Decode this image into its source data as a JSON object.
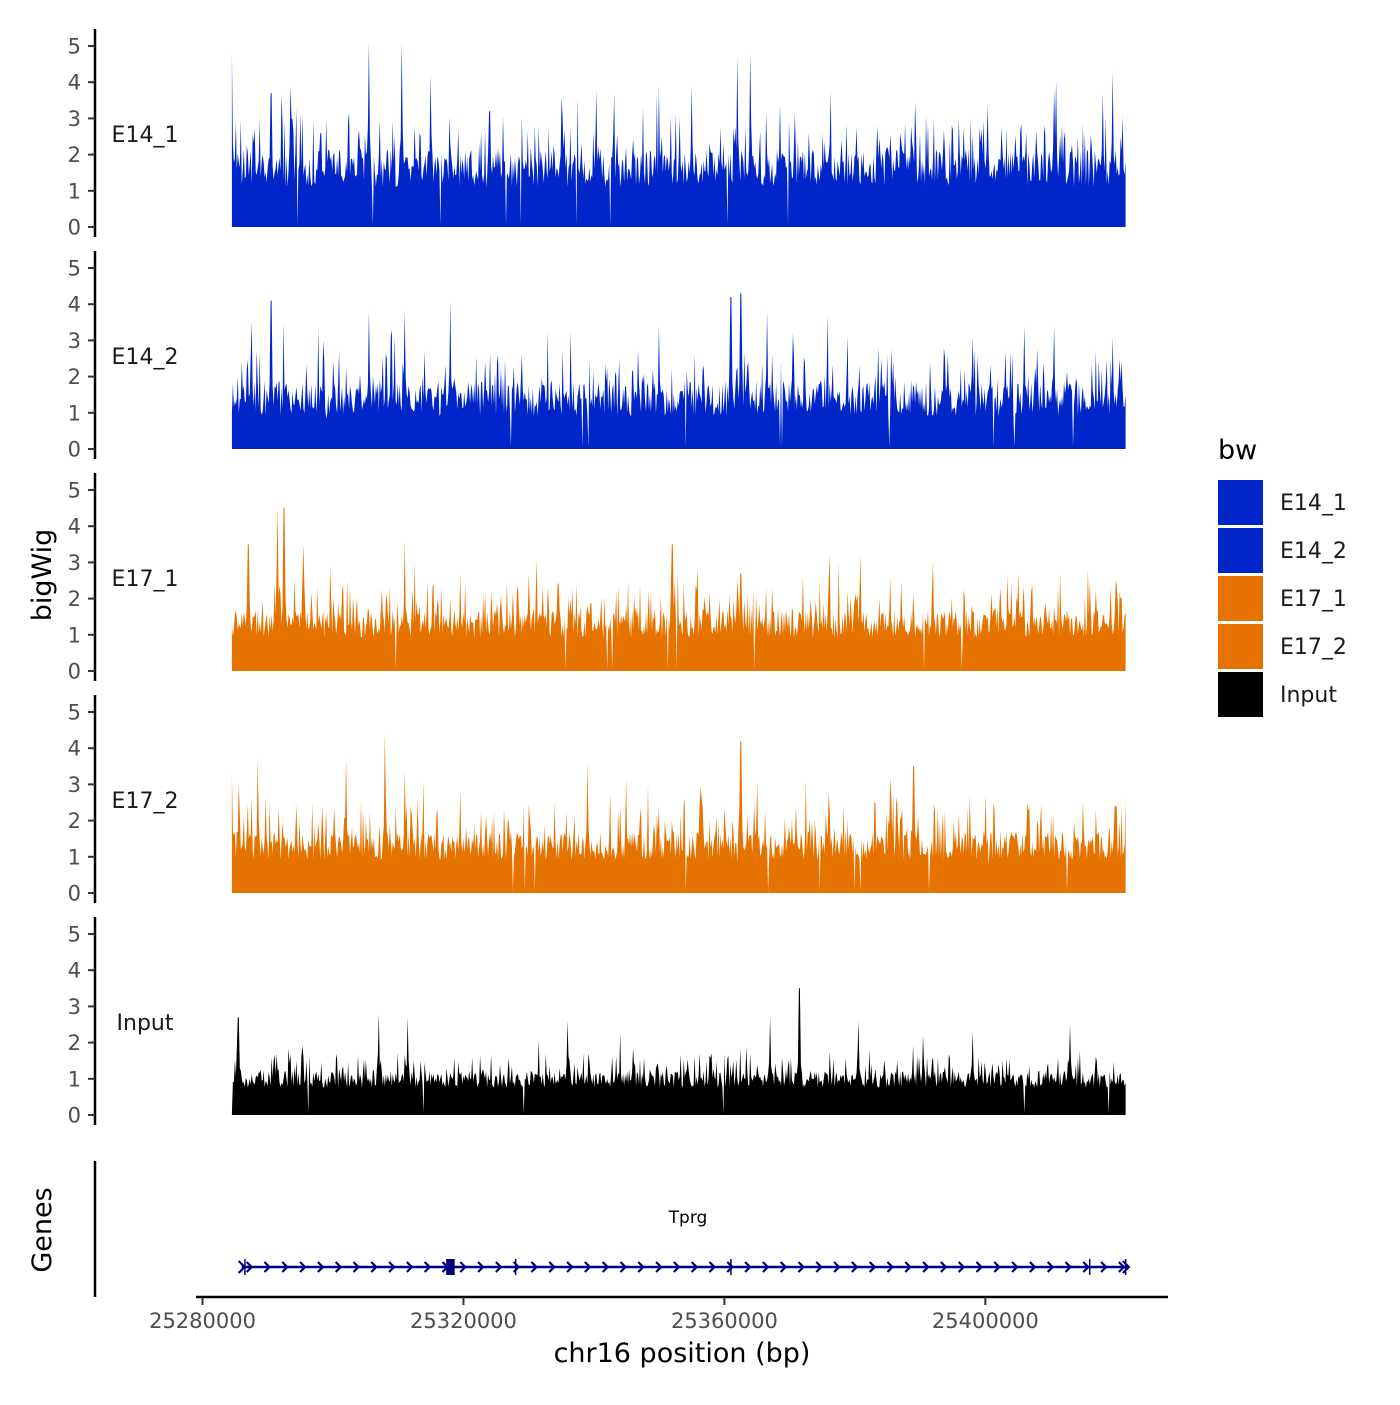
{
  "chart_data": {
    "type": "area",
    "title": "",
    "ylabel": "bigWig",
    "xlabel": "chr16 position (bp)",
    "ylim": [
      0,
      5.3
    ],
    "yticks": [
      0,
      1,
      2,
      3,
      4,
      5
    ],
    "xlim": [
      25279000,
      25428000
    ],
    "xticks": [
      25280000,
      25320000,
      25360000,
      25400000
    ],
    "xtick_labels": [
      "25280000",
      "25320000",
      "25360000",
      "25400000"
    ],
    "data_range": [
      25284500,
      25421500
    ],
    "tracks": [
      {
        "name": "E14_1",
        "color": "#0025C8",
        "peaks": [
          [
            25284500,
            4.8
          ],
          [
            25290500,
            3.7
          ],
          [
            25293500,
            3.9
          ],
          [
            25305500,
            5.1
          ],
          [
            25310500,
            5.1
          ],
          [
            25315000,
            4.2
          ],
          [
            25324000,
            3.2
          ],
          [
            25335000,
            3.6
          ],
          [
            25355000,
            3.9
          ],
          [
            25362000,
            4.7
          ],
          [
            25364000,
            4.8
          ],
          [
            25368500,
            3.4
          ],
          [
            25383500,
            2.8
          ],
          [
            25395000,
            2.7
          ],
          [
            25410500,
            3.8
          ],
          [
            25418000,
            3.7
          ],
          [
            25419500,
            4.3
          ]
        ],
        "base": 1.1,
        "spread": 1.3
      },
      {
        "name": "E14_2",
        "color": "#0025C8",
        "peaks": [
          [
            25287500,
            3.5
          ],
          [
            25290500,
            4.1
          ],
          [
            25298500,
            3.0
          ],
          [
            25305500,
            3.8
          ],
          [
            25311000,
            3.8
          ],
          [
            25318000,
            4.1
          ],
          [
            25329000,
            2.6
          ],
          [
            25350000,
            3.4
          ],
          [
            25361000,
            4.2
          ],
          [
            25362500,
            4.3
          ],
          [
            25366500,
            3.8
          ],
          [
            25370500,
            3.2
          ],
          [
            25384000,
            2.5
          ],
          [
            25398000,
            3.1
          ],
          [
            25406000,
            3.4
          ],
          [
            25410500,
            3.4
          ],
          [
            25419500,
            3.1
          ]
        ],
        "base": 0.9,
        "spread": 1.2
      },
      {
        "name": "E17_1",
        "color": "#E67300",
        "peaks": [
          [
            25287000,
            3.5
          ],
          [
            25291500,
            4.5
          ],
          [
            25292500,
            4.5
          ],
          [
            25295500,
            3.5
          ],
          [
            25311000,
            3.6
          ],
          [
            25319500,
            2.7
          ],
          [
            25330000,
            2.7
          ],
          [
            25352000,
            3.5
          ],
          [
            25362500,
            2.7
          ],
          [
            25376000,
            2.5
          ],
          [
            25392000,
            3.0
          ],
          [
            25405000,
            2.7
          ],
          [
            25420000,
            2.5
          ]
        ],
        "base": 0.9,
        "spread": 1.0
      },
      {
        "name": "E17_2",
        "color": "#E67300",
        "peaks": [
          [
            25284500,
            3.3
          ],
          [
            25288500,
            3.7
          ],
          [
            25302000,
            3.7
          ],
          [
            25308000,
            4.4
          ],
          [
            25311000,
            3.4
          ],
          [
            25319500,
            2.8
          ],
          [
            25339000,
            3.6
          ],
          [
            25362500,
            4.2
          ],
          [
            25365000,
            3.1
          ],
          [
            25376000,
            2.8
          ],
          [
            25389000,
            3.5
          ],
          [
            25400000,
            2.7
          ],
          [
            25415000,
            2.5
          ],
          [
            25420000,
            2.4
          ]
        ],
        "base": 0.9,
        "spread": 1.0
      },
      {
        "name": "Input",
        "color": "#000000",
        "peaks": [
          [
            25285500,
            2.7
          ],
          [
            25307000,
            2.8
          ],
          [
            25311500,
            2.7
          ],
          [
            25336000,
            2.6
          ],
          [
            25367000,
            2.7
          ],
          [
            25371500,
            3.5
          ],
          [
            25380500,
            2.6
          ],
          [
            25390500,
            2.2
          ],
          [
            25398000,
            2.3
          ],
          [
            25413000,
            2.5
          ]
        ],
        "base": 0.75,
        "spread": 0.6
      }
    ],
    "gene_track": {
      "ylabel": "Genes",
      "gene_name": "Tprg",
      "color": "#00007F",
      "start": 25286000,
      "end": 25422000,
      "thick_block": [
        25317500,
        25318500
      ],
      "exon_ticks": [
        25286500,
        25317800,
        25328000,
        25361000,
        25416000,
        25421500
      ]
    },
    "legend": {
      "title": "bw",
      "position": "right",
      "entries": [
        {
          "label": "E14_1",
          "color": "#0025C8"
        },
        {
          "label": "E14_2",
          "color": "#0025C8"
        },
        {
          "label": "E17_1",
          "color": "#E67300"
        },
        {
          "label": "E17_2",
          "color": "#E67300"
        },
        {
          "label": "Input",
          "color": "#000000"
        }
      ]
    }
  }
}
